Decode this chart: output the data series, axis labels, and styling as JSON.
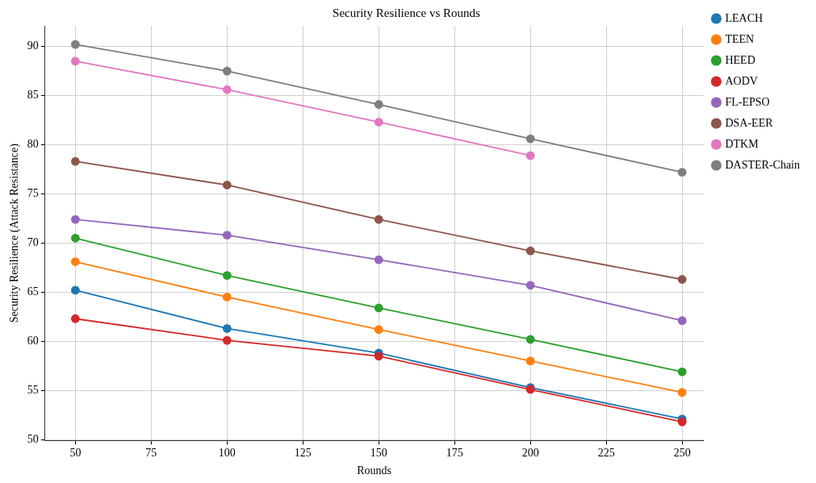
{
  "chart_data": {
    "type": "line",
    "title": "Security Resilience vs Rounds",
    "xlabel": "Rounds",
    "ylabel": "Security Resilience (Attack Resistance)",
    "x": [
      50,
      100,
      150,
      200,
      250
    ],
    "series": [
      {
        "name": "LEACH",
        "color": "#1f77b4",
        "values": [
          65.2,
          61.3,
          58.8,
          55.3,
          52.1
        ]
      },
      {
        "name": "TEEN",
        "color": "#ff7f0e",
        "values": [
          68.1,
          64.5,
          61.2,
          58.0,
          54.8
        ]
      },
      {
        "name": "HEED",
        "color": "#2ca02c",
        "values": [
          70.5,
          66.7,
          63.4,
          60.2,
          56.9
        ]
      },
      {
        "name": "AODV",
        "color": "#d62728",
        "values": [
          62.3,
          60.1,
          58.5,
          55.1,
          51.8
        ]
      },
      {
        "name": "FL-EPSO",
        "color": "#9467bd",
        "values": [
          72.4,
          70.8,
          68.3,
          65.7,
          62.1
        ]
      },
      {
        "name": "DSA-EER",
        "color": "#8c564b",
        "values": [
          78.3,
          75.9,
          72.4,
          69.2,
          66.3
        ]
      },
      {
        "name": "DTKM",
        "color": "#e377c2",
        "values": [
          88.5,
          85.6,
          82.3,
          78.9,
          null
        ]
      },
      {
        "name": "DASTER-Chain",
        "color": "#7f7f7f",
        "values": [
          90.2,
          87.5,
          84.1,
          80.6,
          77.2
        ]
      }
    ],
    "xlim": [
      40,
      257
    ],
    "xticks": [
      50,
      75,
      100,
      125,
      150,
      175,
      200,
      225,
      250
    ],
    "ylim": [
      49.9,
      92.1
    ],
    "yticks": [
      50,
      55,
      60,
      65,
      70,
      75,
      80,
      85,
      90
    ],
    "grid": true,
    "legend": "right",
    "marker": "circle",
    "line_style": "solid"
  }
}
